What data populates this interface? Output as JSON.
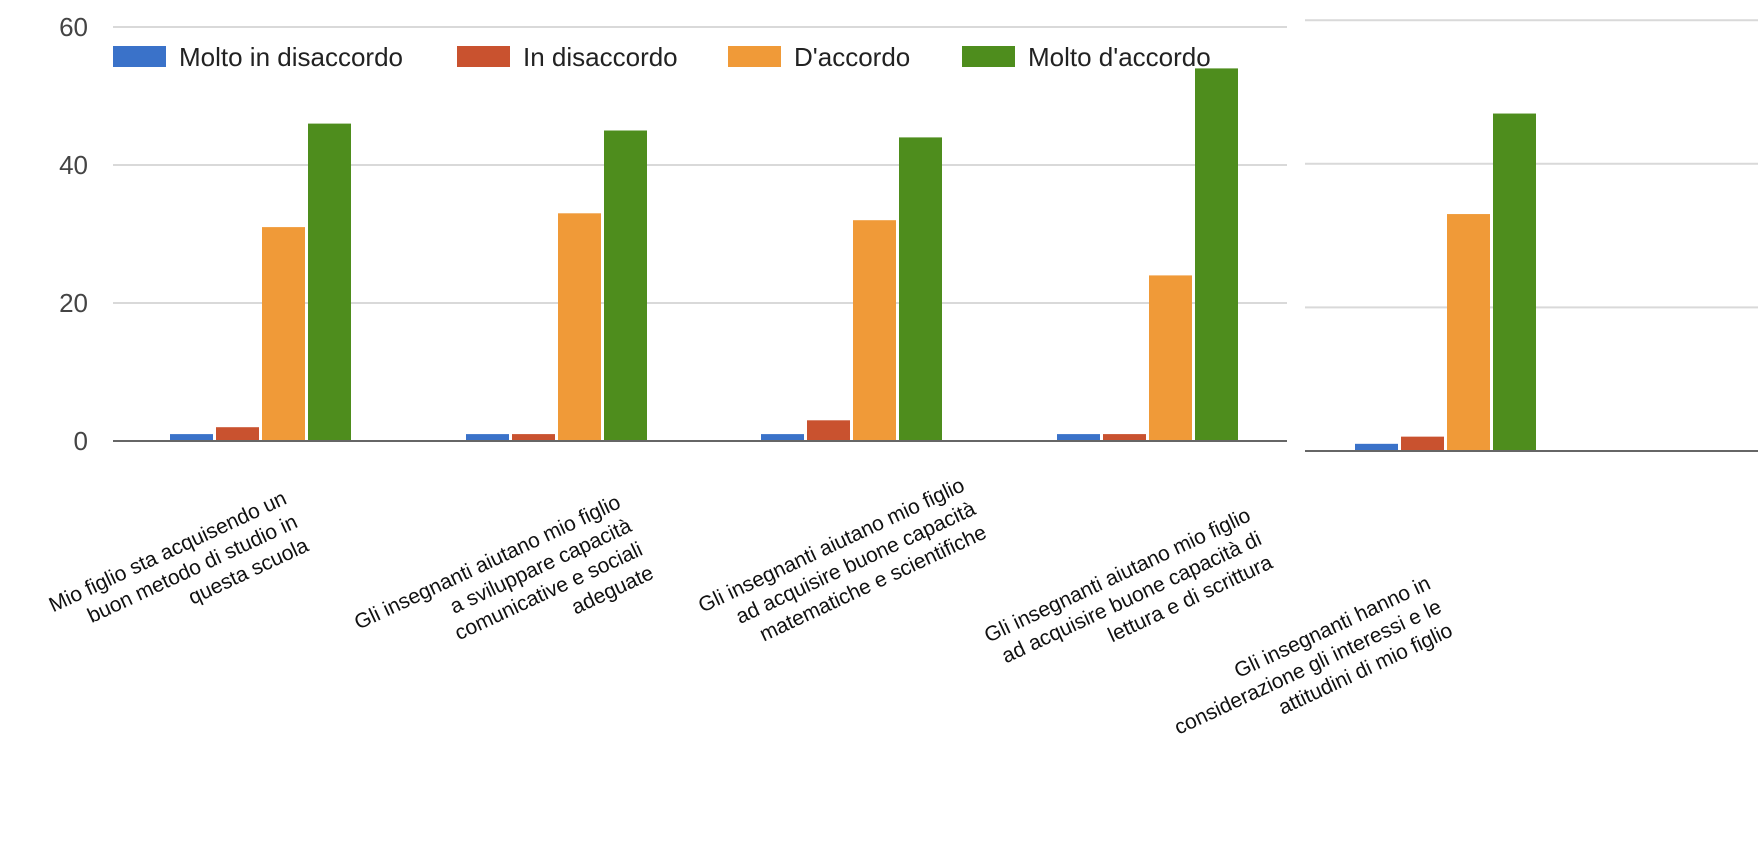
{
  "chart_data": {
    "type": "bar",
    "ylim": [
      0,
      60
    ],
    "yticks": [
      "0",
      "20",
      "40",
      "60"
    ],
    "grid": true,
    "legend_position": "top",
    "series": [
      {
        "name": "Molto in disaccordo",
        "color": "#3366cc",
        "values": [
          1,
          1,
          1,
          1,
          1
        ]
      },
      {
        "name": "In disaccordo",
        "color": "#dc3912",
        "values": [
          2,
          1,
          3,
          1,
          2
        ]
      },
      {
        "name": "D'accordo",
        "color": "#ff9900",
        "values": [
          31,
          33,
          32,
          24,
          33
        ]
      },
      {
        "name": "Molto d'accordo",
        "color": "#109618",
        "values": [
          46,
          45,
          44,
          54,
          47
        ]
      }
    ],
    "categories": [
      {
        "lines": [
          "Mio figlio sta acquisendo un",
          "buon metodo di studio in",
          "questa scuola"
        ]
      },
      {
        "lines": [
          "Gli insegnanti aiutano mio figlio",
          "a sviluppare capacità",
          "comunicative e sociali",
          "adeguate"
        ]
      },
      {
        "lines": [
          "Gli insegnanti aiutano mio figlio",
          "ad acquisire buone capacità",
          "matematiche e scientifiche"
        ]
      },
      {
        "lines": [
          "Gli insegnanti aiutano mio figlio",
          "ad acquisire buone capacità di",
          "lettura e di scrittura"
        ]
      },
      {
        "lines": [
          "Gli insegnanti hanno in",
          "considerazione gli interessi e le",
          "attitudini di mio figlio"
        ]
      }
    ]
  },
  "colors": {
    "blue": "#3a72c9",
    "red": "#c9522f",
    "orange": "#f09a38",
    "green": "#4e8d1d",
    "grid": "#d9d9d9",
    "axis": "#666666"
  }
}
